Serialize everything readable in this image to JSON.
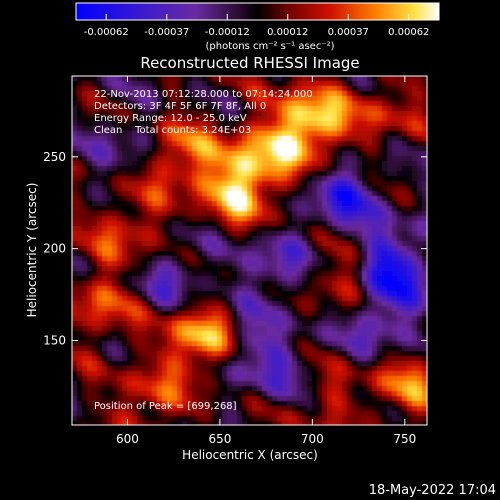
{
  "chart_data": {
    "type": "heatmap",
    "title": "Reconstructed RHESSI Image",
    "xlabel": "Heliocentric X (arcsec)",
    "ylabel": "Heliocentric Y (arcsec)",
    "xlim": [
      570,
      762
    ],
    "ylim": [
      104,
      294
    ],
    "x_ticks": [
      600,
      650,
      700,
      750
    ],
    "y_ticks": [
      150,
      200,
      250
    ],
    "colorbar": {
      "ticks": [
        "-0.00062",
        "-0.00037",
        "-0.00012",
        "0.00012",
        "0.00037",
        "0.00062"
      ],
      "unit_label": "(photons cm⁻² s⁻¹ asec⁻²)",
      "vmin": -0.00062,
      "vmax": 0.00062
    },
    "colors": {
      "low": "#0000ff",
      "mid_low": "#7a3ab8",
      "zero": "#000000",
      "mid_high": "#e01c00",
      "high": "#ffffff"
    },
    "annotations": [
      "22-Nov-2013 07:12:28.000 to 07:14:24.000",
      "Detectors: 3F 4F 5F 6F 7F 8F, All 0",
      "Energy Range: 12.0 - 25.0 keV",
      "Clean    Total counts: 3.24E+03"
    ],
    "peak_label": "Position of Peak = [699,268]",
    "peak": [
      699,
      268
    ],
    "sources": [
      {
        "x": 699,
        "y": 268,
        "value": 0.00062
      },
      {
        "x": 640,
        "y": 150,
        "value": 0.00055
      },
      {
        "x": 660,
        "y": 232,
        "value": 0.00045
      },
      {
        "x": 627,
        "y": 250,
        "value": 0.0004
      },
      {
        "x": 718,
        "y": 185,
        "value": 0.00032
      },
      {
        "x": 750,
        "y": 125,
        "value": 0.00033
      },
      {
        "x": 584,
        "y": 168,
        "value": 0.0003
      },
      {
        "x": 704,
        "y": 120,
        "value": 0.00025
      },
      {
        "x": 600,
        "y": 210,
        "value": 0.0003
      },
      {
        "x": 740,
        "y": 275,
        "value": 0.00022
      },
      {
        "x": 610,
        "y": 115,
        "value": 0.00028
      },
      {
        "x": 672,
        "y": 250,
        "value": 0.00035
      },
      {
        "x": 742,
        "y": 190,
        "value": -0.00055
      },
      {
        "x": 717,
        "y": 228,
        "value": -0.0004
      },
      {
        "x": 680,
        "y": 190,
        "value": -0.00028
      },
      {
        "x": 665,
        "y": 145,
        "value": -0.0003
      },
      {
        "x": 625,
        "y": 185,
        "value": -0.00025
      },
      {
        "x": 737,
        "y": 160,
        "value": -0.0003
      },
      {
        "x": 600,
        "y": 255,
        "value": -0.0002
      },
      {
        "x": 690,
        "y": 130,
        "value": -0.00022
      }
    ]
  },
  "footer": {
    "timestamp": "18-May-2022 17:04"
  }
}
